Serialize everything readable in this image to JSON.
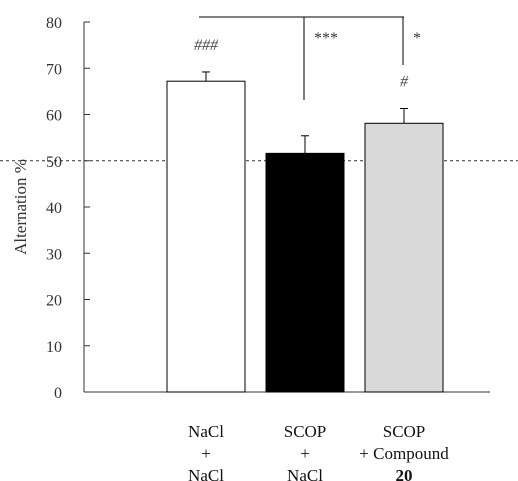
{
  "chart_data": {
    "type": "bar",
    "ylabel": "Alternation %",
    "ylim": [
      0,
      80
    ],
    "yticks": [
      0,
      10,
      20,
      30,
      40,
      50,
      60,
      70,
      80
    ],
    "reference_line": 50,
    "categories": [
      {
        "lines": [
          "NaCl",
          "+",
          "NaCl"
        ],
        "bold_last": false
      },
      {
        "lines": [
          "SCOP",
          "+",
          "NaCl"
        ],
        "bold_last": false
      },
      {
        "lines": [
          "SCOP",
          "+ Compound",
          "20"
        ],
        "bold_last": true
      }
    ],
    "values": [
      67.2,
      51.6,
      58.1
    ],
    "errors": [
      2.0,
      3.8,
      3.2
    ],
    "bar_colors": [
      "#ffffff",
      "#000000",
      "#d9d9d9"
    ],
    "bar_annotations": [
      "###",
      "",
      "#"
    ],
    "significance": [
      {
        "from": 0,
        "to": 1,
        "label": "***"
      },
      {
        "from": 0,
        "to": 2,
        "label": "*"
      }
    ],
    "grid": false
  }
}
